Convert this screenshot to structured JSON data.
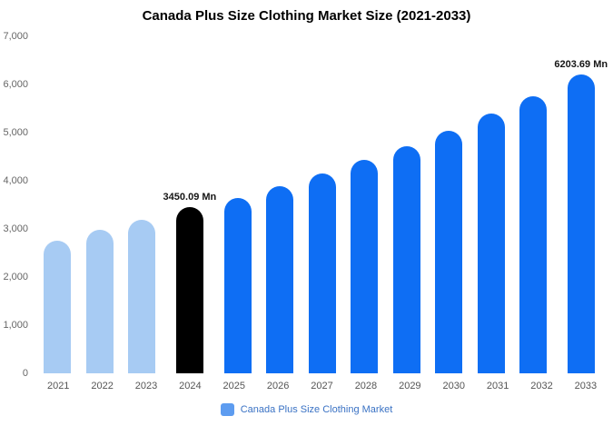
{
  "title": "Canada Plus Size Clothing Market Size (2021-2033)",
  "legend": {
    "label": "Canada Plus Size Clothing Market",
    "swatch_color": "#5d9cf0"
  },
  "chart_data": {
    "type": "bar",
    "title": "Canada Plus Size Clothing Market Size (2021-2033)",
    "categories": [
      "2021",
      "2022",
      "2023",
      "2024",
      "2025",
      "2026",
      "2027",
      "2028",
      "2029",
      "2030",
      "2031",
      "2032",
      "2033"
    ],
    "values": [
      2750,
      2980,
      3180,
      3450.09,
      3650,
      3890,
      4150,
      4430,
      4720,
      5040,
      5390,
      5760,
      6203.69
    ],
    "unit": "Mn",
    "ylim": [
      0,
      7000
    ],
    "yticks": [
      0,
      1000,
      2000,
      3000,
      4000,
      5000,
      6000,
      7000
    ],
    "ytick_labels": [
      "0",
      "1,000",
      "2,000",
      "3,000",
      "4,000",
      "5,000",
      "6,000",
      "7,000"
    ],
    "grid": false,
    "legend_position": "bottom",
    "bar_colors": [
      "#a7cbf3",
      "#a7cbf3",
      "#a7cbf3",
      "#000000",
      "#0e6ef4",
      "#0e6ef4",
      "#0e6ef4",
      "#0e6ef4",
      "#0e6ef4",
      "#0e6ef4",
      "#0e6ef4",
      "#0e6ef4",
      "#0e6ef4"
    ],
    "data_labels": {
      "2024": "3450.09 Mn",
      "2033": "6203.69 Mn"
    }
  }
}
